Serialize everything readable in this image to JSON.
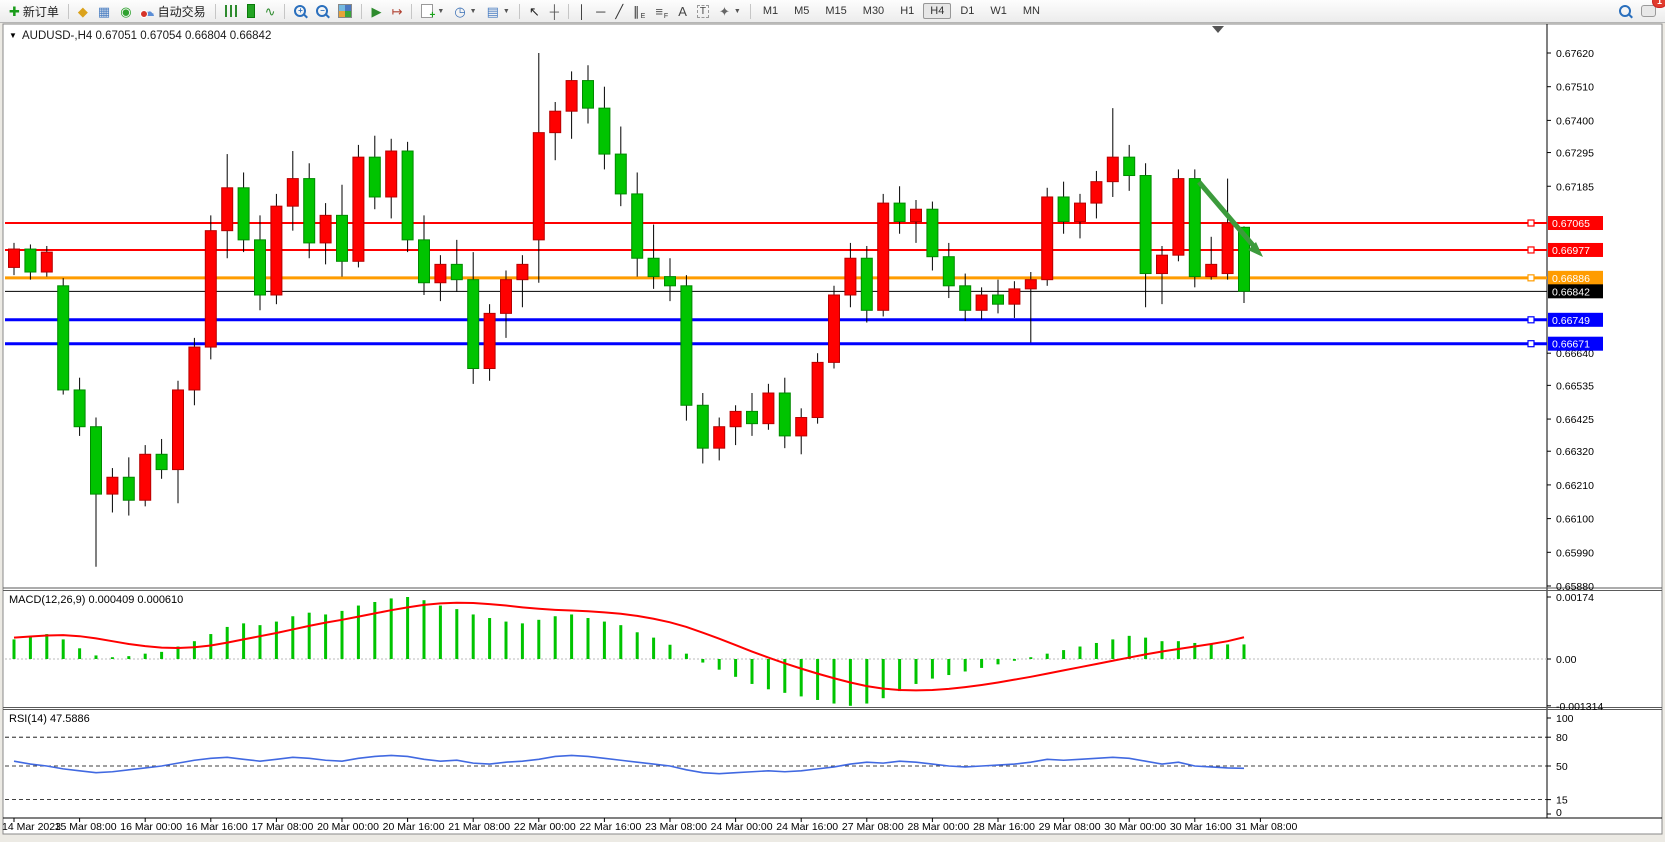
{
  "toolbar": {
    "groups": [
      {
        "items": [
          {
            "name": "new-order-button",
            "icon": "new-order-icon",
            "label": "新订单"
          }
        ]
      },
      {
        "items": [
          {
            "name": "charts-profile-button",
            "icon": "profile-icon"
          },
          {
            "name": "market-watch-button",
            "icon": "market-watch-icon"
          },
          {
            "name": "signals-button",
            "icon": "signals-icon"
          },
          {
            "name": "auto-trading-button",
            "icon": "auto-trading-icon",
            "label": "自动交易"
          }
        ]
      },
      {
        "items": [
          {
            "name": "bar-chart-button",
            "icon": "bar-chart-icon"
          },
          {
            "name": "candlestick-chart-button",
            "icon": "candlestick-icon"
          },
          {
            "name": "line-chart-button",
            "icon": "line-chart-icon"
          }
        ]
      },
      {
        "items": [
          {
            "name": "zoom-in-button",
            "icon": "zoom-in-icon"
          },
          {
            "name": "zoom-out-button",
            "icon": "zoom-out-icon"
          },
          {
            "name": "tile-windows-button",
            "icon": "tile-windows-icon"
          }
        ]
      },
      {
        "items": [
          {
            "name": "auto-scroll-button",
            "icon": "auto-scroll-icon"
          },
          {
            "name": "chart-shift-button",
            "icon": "chart-shift-icon"
          }
        ]
      },
      {
        "items": [
          {
            "name": "new-chart-button",
            "icon": "new-chart-icon",
            "dropdown": true
          },
          {
            "name": "period-button",
            "icon": "clock-icon",
            "dropdown": true
          },
          {
            "name": "templates-button",
            "icon": "template-icon",
            "dropdown": true
          }
        ]
      },
      {
        "items": [
          {
            "name": "cursor-button",
            "icon": "cursor-icon"
          },
          {
            "name": "crosshair-button",
            "icon": "crosshair-icon"
          }
        ]
      },
      {
        "items": [
          {
            "name": "vertical-line-button",
            "icon": "vertical-line-icon"
          },
          {
            "name": "horizontal-line-button",
            "icon": "horizontal-line-icon"
          },
          {
            "name": "trendline-button",
            "icon": "trendline-icon"
          },
          {
            "name": "equidistant-channel-button",
            "icon": "channel-icon"
          },
          {
            "name": "fibonacci-button",
            "icon": "fibonacci-icon"
          },
          {
            "name": "text-button",
            "icon": "text-icon"
          },
          {
            "name": "text-label-button",
            "icon": "text-label-icon"
          },
          {
            "name": "arrows-button",
            "icon": "arrows-icon",
            "dropdown": true
          }
        ]
      }
    ],
    "timeframes": [
      "M1",
      "M5",
      "M15",
      "M30",
      "H1",
      "H4",
      "D1",
      "W1",
      "MN"
    ],
    "active_timeframe": "H4",
    "search_button": {
      "name": "search-button",
      "icon": "search-icon"
    },
    "chat_button": {
      "name": "chat-button",
      "icon": "chat-icon",
      "badge": "1"
    }
  },
  "chart_data": {
    "type": "candlestick",
    "symbol": "AUDUSD-",
    "timeframe": "H4",
    "title": "AUDUSD-,H4",
    "ohlc_display": "0.67051 0.67054 0.66804 0.66842",
    "price_axis": {
      "min": 0.6588,
      "max": 0.6762,
      "ticks": [
        "0.67620",
        "0.67510",
        "0.67400",
        "0.67295",
        "0.67185",
        "0.66640",
        "0.66535",
        "0.66425",
        "0.66320",
        "0.66210",
        "0.66100",
        "0.65990",
        "0.65880"
      ]
    },
    "colors": {
      "bull": "#FF0000",
      "bull_stroke": "#B80000",
      "bear": "#00C400",
      "bear_stroke": "#008A00",
      "wick": "#000000",
      "background": "#FFFFFF"
    },
    "candles": [
      [
        0.6692,
        0.67,
        0.66895,
        0.6698
      ],
      [
        0.6698,
        0.66995,
        0.6688,
        0.66905
      ],
      [
        0.66905,
        0.6699,
        0.6689,
        0.6697
      ],
      [
        0.6686,
        0.66885,
        0.66505,
        0.6652
      ],
      [
        0.6652,
        0.6656,
        0.6637,
        0.664
      ],
      [
        0.664,
        0.6643,
        0.65943,
        0.6618
      ],
      [
        0.6618,
        0.66265,
        0.6612,
        0.66235
      ],
      [
        0.66235,
        0.663,
        0.6611,
        0.6616
      ],
      [
        0.6616,
        0.6634,
        0.6614,
        0.6631
      ],
      [
        0.6631,
        0.6636,
        0.6623,
        0.6626
      ],
      [
        0.6626,
        0.6655,
        0.6615,
        0.6652
      ],
      [
        0.6652,
        0.6669,
        0.6647,
        0.6666
      ],
      [
        0.6666,
        0.6709,
        0.6662,
        0.6704
      ],
      [
        0.6704,
        0.6729,
        0.6695,
        0.6718
      ],
      [
        0.6718,
        0.6723,
        0.6697,
        0.6701
      ],
      [
        0.6701,
        0.6709,
        0.6678,
        0.6683
      ],
      [
        0.6683,
        0.6716,
        0.668,
        0.6712
      ],
      [
        0.6712,
        0.673,
        0.6704,
        0.6721
      ],
      [
        0.6721,
        0.6726,
        0.6695,
        0.67
      ],
      [
        0.67,
        0.6713,
        0.6693,
        0.6709
      ],
      [
        0.6709,
        0.6719,
        0.6689,
        0.6694
      ],
      [
        0.6694,
        0.6732,
        0.6692,
        0.6728
      ],
      [
        0.6728,
        0.6735,
        0.6711,
        0.6715
      ],
      [
        0.6715,
        0.6734,
        0.6708,
        0.673
      ],
      [
        0.673,
        0.6733,
        0.6697,
        0.6701
      ],
      [
        0.6701,
        0.6709,
        0.6683,
        0.6687
      ],
      [
        0.6687,
        0.6696,
        0.6681,
        0.6693
      ],
      [
        0.6693,
        0.6701,
        0.6684,
        0.6688
      ],
      [
        0.6688,
        0.6697,
        0.6654,
        0.6659
      ],
      [
        0.6659,
        0.668,
        0.6655,
        0.6677
      ],
      [
        0.6677,
        0.6691,
        0.6669,
        0.6688
      ],
      [
        0.6688,
        0.6696,
        0.6679,
        0.6693
      ],
      [
        0.6701,
        0.6762,
        0.6687,
        0.6736
      ],
      [
        0.6736,
        0.6746,
        0.6727,
        0.6743
      ],
      [
        0.6743,
        0.6756,
        0.6734,
        0.6753
      ],
      [
        0.6753,
        0.6758,
        0.6739,
        0.6744
      ],
      [
        0.6744,
        0.6751,
        0.6724,
        0.6729
      ],
      [
        0.6729,
        0.6738,
        0.6712,
        0.6716
      ],
      [
        0.6716,
        0.6723,
        0.6689,
        0.6695
      ],
      [
        0.6695,
        0.6706,
        0.6685,
        0.6689
      ],
      [
        0.6689,
        0.6695,
        0.6681,
        0.6686
      ],
      [
        0.6686,
        0.66895,
        0.6642,
        0.6647
      ],
      [
        0.6647,
        0.6651,
        0.6628,
        0.6633
      ],
      [
        0.6633,
        0.6643,
        0.6629,
        0.664
      ],
      [
        0.664,
        0.6647,
        0.6634,
        0.6645
      ],
      [
        0.6645,
        0.6651,
        0.6637,
        0.6641
      ],
      [
        0.6641,
        0.6654,
        0.6639,
        0.6651
      ],
      [
        0.6651,
        0.6656,
        0.6633,
        0.6637
      ],
      [
        0.6637,
        0.6646,
        0.6631,
        0.6643
      ],
      [
        0.6643,
        0.6664,
        0.6641,
        0.6661
      ],
      [
        0.6661,
        0.6686,
        0.6659,
        0.6683
      ],
      [
        0.6683,
        0.67,
        0.6679,
        0.6695
      ],
      [
        0.6695,
        0.6699,
        0.6674,
        0.6678
      ],
      [
        0.6678,
        0.6716,
        0.6676,
        0.6713
      ],
      [
        0.6713,
        0.67185,
        0.6703,
        0.6707
      ],
      [
        0.6707,
        0.6714,
        0.67,
        0.6711
      ],
      [
        0.6711,
        0.67135,
        0.6691,
        0.66955
      ],
      [
        0.66955,
        0.67,
        0.6682,
        0.6686
      ],
      [
        0.6686,
        0.669,
        0.66745,
        0.6678
      ],
      [
        0.6678,
        0.66855,
        0.6675,
        0.6683
      ],
      [
        0.6683,
        0.6688,
        0.6677,
        0.668
      ],
      [
        0.668,
        0.66875,
        0.66755,
        0.6685
      ],
      [
        0.6685,
        0.66905,
        0.66675,
        0.6688
      ],
      [
        0.6688,
        0.6718,
        0.6686,
        0.6715
      ],
      [
        0.6715,
        0.672,
        0.6703,
        0.6707
      ],
      [
        0.6707,
        0.6716,
        0.67015,
        0.6713
      ],
      [
        0.6713,
        0.67235,
        0.6708,
        0.672
      ],
      [
        0.672,
        0.6744,
        0.6715,
        0.6728
      ],
      [
        0.6728,
        0.6732,
        0.6717,
        0.6722
      ],
      [
        0.6722,
        0.6726,
        0.6679,
        0.669
      ],
      [
        0.669,
        0.6699,
        0.668,
        0.6696
      ],
      [
        0.6696,
        0.6724,
        0.6694,
        0.6721
      ],
      [
        0.6721,
        0.6724,
        0.66855,
        0.6689
      ],
      [
        0.6689,
        0.6702,
        0.6688,
        0.6693
      ],
      [
        0.669,
        0.6721,
        0.6688,
        0.67065
      ],
      [
        0.67051,
        0.67054,
        0.66804,
        0.66842
      ]
    ],
    "hlines": [
      {
        "price": 0.67065,
        "label": "0.67065",
        "color": "#FF0000",
        "width": 2
      },
      {
        "price": 0.66977,
        "label": "0.66977",
        "color": "#FF0000",
        "width": 2
      },
      {
        "price": 0.66886,
        "label": "0.66886",
        "color": "#FF9C00",
        "width": 3
      },
      {
        "price": 0.66749,
        "label": "0.66749",
        "color": "#0000FF",
        "width": 3
      },
      {
        "price": 0.66671,
        "label": "0.66671",
        "color": "#0000FF",
        "width": 3
      }
    ],
    "current_price": {
      "price": 0.66842,
      "label": "0.66842",
      "color": "#000000"
    },
    "annotation_arrow": {
      "color": "#3C9B3C",
      "from": [
        1199,
        182
      ],
      "to": [
        1263,
        257
      ]
    },
    "time_labels": [
      "14 Mar 2023",
      "15 Mar 08:00",
      "16 Mar 00:00",
      "16 Mar 16:00",
      "17 Mar 08:00",
      "20 Mar 00:00",
      "20 Mar 16:00",
      "21 Mar 08:00",
      "22 Mar 00:00",
      "22 Mar 16:00",
      "23 Mar 08:00",
      "24 Mar 00:00",
      "24 Mar 16:00",
      "27 Mar 08:00",
      "28 Mar 00:00",
      "28 Mar 16:00",
      "29 Mar 08:00",
      "30 Mar 00:00",
      "30 Mar 16:00",
      "31 Mar 08:00"
    ],
    "indicators": {
      "macd": {
        "label": "MACD(12,26,9)",
        "value_main": "0.000409",
        "value_signal": "0.000610",
        "axis_ticks": [
          "0.00174",
          "0.00",
          "-0.001314"
        ],
        "axis_values": [
          0.00174,
          0,
          -0.001314
        ],
        "histogram_color": "#00C400",
        "signal_color": "#FF0000",
        "histogram": [
          0.00055,
          0.00065,
          0.0007,
          0.00055,
          0.0003,
          0.0001,
          5e-05,
          8e-05,
          0.00015,
          0.0002,
          0.00035,
          0.0005,
          0.0007,
          0.0009,
          0.001,
          0.00095,
          0.00105,
          0.0012,
          0.0013,
          0.00125,
          0.00135,
          0.0015,
          0.0016,
          0.0017,
          0.00174,
          0.00165,
          0.0015,
          0.0014,
          0.00125,
          0.00115,
          0.00105,
          0.001,
          0.0011,
          0.0012,
          0.00125,
          0.00115,
          0.00105,
          0.00095,
          0.00075,
          0.0006,
          0.0004,
          0.00015,
          -0.0001,
          -0.0003,
          -0.0005,
          -0.0007,
          -0.00085,
          -0.00095,
          -0.00105,
          -0.00115,
          -0.00125,
          -0.001314,
          -0.00125,
          -0.0011,
          -0.0009,
          -0.0007,
          -0.00055,
          -0.00045,
          -0.00035,
          -0.00025,
          -0.00015,
          -5e-05,
          5e-05,
          0.00015,
          0.00025,
          0.00035,
          0.00045,
          0.00055,
          0.00065,
          0.0006,
          0.0005,
          0.0005,
          0.00045,
          0.00042,
          0.000409,
          0.000409
        ],
        "signal": [
          0.0006,
          0.00063,
          0.00066,
          0.00067,
          0.00064,
          0.00058,
          0.0005,
          0.00042,
          0.00036,
          0.00032,
          0.00031,
          0.00033,
          0.00038,
          0.00046,
          0.00055,
          0.00064,
          0.00073,
          0.00083,
          0.00093,
          0.00102,
          0.0011,
          0.00119,
          0.00128,
          0.00137,
          0.00145,
          0.00152,
          0.00156,
          0.00158,
          0.00157,
          0.00154,
          0.0015,
          0.00145,
          0.00141,
          0.00138,
          0.00136,
          0.00134,
          0.00131,
          0.00127,
          0.00121,
          0.00113,
          0.00103,
          0.0009,
          0.00074,
          0.00057,
          0.00039,
          0.00021,
          4e-05,
          -0.00012,
          -0.00027,
          -0.00041,
          -0.00054,
          -0.00066,
          -0.00076,
          -0.00083,
          -0.00087,
          -0.00088,
          -0.00087,
          -0.00084,
          -0.00079,
          -0.00073,
          -0.00066,
          -0.00058,
          -0.0005,
          -0.00041,
          -0.00032,
          -0.00023,
          -0.00014,
          -5e-05,
          4e-05,
          0.00013,
          0.00021,
          0.00028,
          0.00035,
          0.00042,
          0.0005,
          0.00061
        ]
      },
      "rsi": {
        "label": "RSI(14)",
        "value": "47.5886",
        "levels": [
          100,
          80,
          50,
          15,
          0
        ],
        "dashed_levels": [
          80,
          50,
          15
        ],
        "line_color": "#4169E1",
        "values": [
          55,
          52,
          50,
          47,
          45,
          43,
          44,
          46,
          48,
          50,
          53,
          56,
          58,
          59,
          57,
          55,
          57,
          59,
          58,
          56,
          55,
          58,
          60,
          61,
          60,
          57,
          55,
          56,
          53,
          52,
          54,
          55,
          57,
          60,
          61,
          60,
          58,
          56,
          54,
          52,
          50,
          46,
          43,
          42,
          43,
          44,
          45,
          44,
          45,
          47,
          49,
          52,
          54,
          53,
          55,
          54,
          52,
          50,
          49,
          50,
          51,
          52,
          54,
          57,
          56,
          57,
          58,
          59,
          58,
          55,
          52,
          54,
          50,
          49,
          48,
          47.6
        ]
      }
    }
  }
}
